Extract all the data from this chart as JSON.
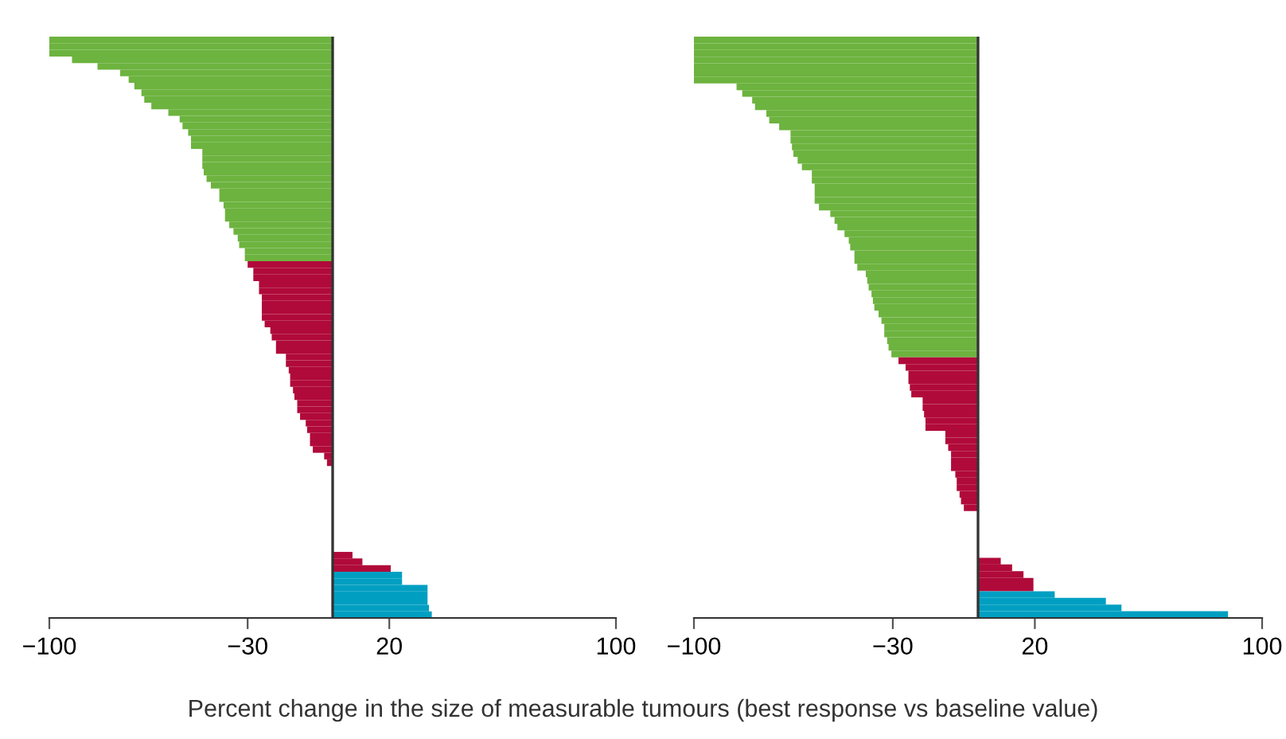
{
  "chart_data": [
    {
      "type": "bar",
      "orientation": "horizontal",
      "xlabel": "Percent change in the size of measurable tumours (best response vs baseline value)",
      "xlim": [
        -100,
        100
      ],
      "xticks": [
        -100,
        -30,
        20,
        100
      ],
      "tick_labels": "x",
      "grid": false,
      "legend": false,
      "ref_lines": [
        {
          "axis": "x",
          "value": 0,
          "color": "#333333"
        }
      ],
      "categories": [
        null,
        null,
        null,
        null,
        null,
        null,
        null,
        null,
        null,
        null,
        null,
        null,
        null,
        null,
        null,
        null,
        null,
        null,
        null,
        null,
        null,
        null,
        null,
        null,
        null,
        null,
        null,
        null,
        null,
        null,
        null,
        null,
        null,
        null,
        null,
        null,
        null,
        null,
        null,
        null,
        null,
        null,
        null,
        null,
        null,
        null,
        null,
        null,
        null,
        null,
        null,
        null,
        null,
        null,
        null,
        null,
        null,
        null,
        null,
        null,
        null,
        null,
        null,
        null,
        null,
        null,
        null,
        null,
        null,
        null,
        null,
        null,
        null,
        null,
        null,
        null,
        null,
        null,
        null,
        null,
        null,
        null,
        null,
        null,
        null,
        null,
        null,
        null
      ],
      "values": [
        -100,
        -100,
        -100,
        -92,
        -83,
        -75,
        -72,
        -70,
        -67.5,
        -66.5,
        -64,
        -58,
        -54,
        -53,
        -51,
        -50,
        -50,
        -46,
        -46,
        -46,
        -45.5,
        -44.5,
        -43,
        -40,
        -40,
        -38.5,
        -38,
        -38,
        -36.5,
        -35,
        -33.5,
        -33,
        -31,
        -31,
        -30,
        -28,
        -28,
        -26,
        -26,
        -25,
        -25,
        -25,
        -25,
        -24,
        -22,
        -21.5,
        -20,
        -20,
        -16.5,
        -16.5,
        -15.5,
        -15,
        -15,
        -14,
        -13.5,
        -12.5,
        -12.5,
        -11.5,
        -9.5,
        -9,
        -8,
        -8,
        -7,
        -3,
        -2,
        0,
        0,
        0,
        0,
        0,
        0,
        0,
        0,
        0,
        0,
        0,
        0,
        0,
        7,
        10.5,
        20.5,
        24.5,
        24.5,
        33.5,
        33.5,
        33.5,
        34,
        35
      ],
      "colors": [
        "#6db33f",
        "#6db33f",
        "#6db33f",
        "#6db33f",
        "#6db33f",
        "#6db33f",
        "#6db33f",
        "#6db33f",
        "#6db33f",
        "#6db33f",
        "#6db33f",
        "#6db33f",
        "#6db33f",
        "#6db33f",
        "#6db33f",
        "#6db33f",
        "#6db33f",
        "#6db33f",
        "#6db33f",
        "#6db33f",
        "#6db33f",
        "#6db33f",
        "#6db33f",
        "#6db33f",
        "#6db33f",
        "#6db33f",
        "#6db33f",
        "#6db33f",
        "#6db33f",
        "#6db33f",
        "#6db33f",
        "#6db33f",
        "#6db33f",
        "#6db33f",
        "#b00a3a",
        "#b00a3a",
        "#b00a3a",
        "#b00a3a",
        "#b00a3a",
        "#b00a3a",
        "#b00a3a",
        "#b00a3a",
        "#b00a3a",
        "#b00a3a",
        "#b00a3a",
        "#b00a3a",
        "#b00a3a",
        "#b00a3a",
        "#b00a3a",
        "#b00a3a",
        "#b00a3a",
        "#b00a3a",
        "#b00a3a",
        "#b00a3a",
        "#b00a3a",
        "#b00a3a",
        "#b00a3a",
        "#b00a3a",
        "#b00a3a",
        "#b00a3a",
        "#b00a3a",
        "#b00a3a",
        "#b00a3a",
        "#b00a3a",
        "#b00a3a",
        "#b00a3a",
        "#b00a3a",
        "#b00a3a",
        "#b00a3a",
        "#b00a3a",
        "#b00a3a",
        "#b00a3a",
        "#b00a3a",
        "#b00a3a",
        "#b00a3a",
        "#b00a3a",
        "#b00a3a",
        "#b00a3a",
        "#b00a3a",
        "#b00a3a",
        "#b00a3a",
        "#009fc2",
        "#009fc2",
        "#009fc2",
        "#009fc2",
        "#009fc2",
        "#009fc2",
        "#009fc2"
      ]
    },
    {
      "type": "bar",
      "orientation": "horizontal",
      "xlim": [
        -100,
        100
      ],
      "xticks": [
        -100,
        -30,
        20,
        100
      ],
      "tick_labels": "x",
      "grid": false,
      "legend": false,
      "ref_lines": [
        {
          "axis": "x",
          "value": 0,
          "color": "#333333"
        }
      ],
      "categories": [
        null,
        null,
        null,
        null,
        null,
        null,
        null,
        null,
        null,
        null,
        null,
        null,
        null,
        null,
        null,
        null,
        null,
        null,
        null,
        null,
        null,
        null,
        null,
        null,
        null,
        null,
        null,
        null,
        null,
        null,
        null,
        null,
        null,
        null,
        null,
        null,
        null,
        null,
        null,
        null,
        null,
        null,
        null,
        null,
        null,
        null,
        null,
        null,
        null,
        null,
        null,
        null,
        null,
        null,
        null,
        null,
        null,
        null,
        null,
        null,
        null,
        null,
        null,
        null,
        null,
        null,
        null,
        null,
        null,
        null,
        null,
        null,
        null,
        null,
        null,
        null,
        null,
        null,
        null,
        null,
        null,
        null,
        null,
        null,
        null,
        null,
        null
      ],
      "values": [
        -100,
        -100,
        -100,
        -100,
        -100,
        -100,
        -100,
        -85,
        -83,
        -79.5,
        -78.5,
        -74.5,
        -73.5,
        -70,
        -66,
        -66,
        -65.5,
        -65,
        -63.5,
        -62,
        -58.5,
        -58.5,
        -57.5,
        -57.5,
        -57.5,
        -56,
        -52,
        -50.5,
        -49.5,
        -47,
        -45.5,
        -45,
        -43.5,
        -43.5,
        -42.5,
        -39.5,
        -39,
        -38.5,
        -37.5,
        -37,
        -36.5,
        -35,
        -34,
        -33,
        -33,
        -32,
        -31.5,
        -30.5,
        -28,
        -25.5,
        -24.5,
        -24.5,
        -24,
        -23.5,
        -19.5,
        -19.5,
        -19,
        -18.5,
        -18.5,
        -11.5,
        -11.5,
        -10.5,
        -9.5,
        -9.5,
        -9.5,
        -8,
        -7.5,
        -7.5,
        -6.5,
        -6,
        -5,
        0,
        0,
        0,
        0,
        0,
        0,
        0,
        8,
        12,
        16,
        19.5,
        19.5,
        27,
        45,
        50.5,
        88
      ],
      "colors": [
        "#6db33f",
        "#6db33f",
        "#6db33f",
        "#6db33f",
        "#6db33f",
        "#6db33f",
        "#6db33f",
        "#6db33f",
        "#6db33f",
        "#6db33f",
        "#6db33f",
        "#6db33f",
        "#6db33f",
        "#6db33f",
        "#6db33f",
        "#6db33f",
        "#6db33f",
        "#6db33f",
        "#6db33f",
        "#6db33f",
        "#6db33f",
        "#6db33f",
        "#6db33f",
        "#6db33f",
        "#6db33f",
        "#6db33f",
        "#6db33f",
        "#6db33f",
        "#6db33f",
        "#6db33f",
        "#6db33f",
        "#6db33f",
        "#6db33f",
        "#6db33f",
        "#6db33f",
        "#6db33f",
        "#6db33f",
        "#6db33f",
        "#6db33f",
        "#6db33f",
        "#6db33f",
        "#6db33f",
        "#6db33f",
        "#6db33f",
        "#6db33f",
        "#6db33f",
        "#6db33f",
        "#6db33f",
        "#b00a3a",
        "#b00a3a",
        "#b00a3a",
        "#b00a3a",
        "#b00a3a",
        "#b00a3a",
        "#b00a3a",
        "#b00a3a",
        "#b00a3a",
        "#b00a3a",
        "#b00a3a",
        "#b00a3a",
        "#b00a3a",
        "#b00a3a",
        "#b00a3a",
        "#b00a3a",
        "#b00a3a",
        "#b00a3a",
        "#b00a3a",
        "#b00a3a",
        "#b00a3a",
        "#b00a3a",
        "#b00a3a",
        "#b00a3a",
        "#b00a3a",
        "#b00a3a",
        "#b00a3a",
        "#b00a3a",
        "#b00a3a",
        "#b00a3a",
        "#b00a3a",
        "#b00a3a",
        "#b00a3a",
        "#b00a3a",
        "#b00a3a",
        "#009fc2",
        "#009fc2",
        "#009fc2",
        "#009fc2"
      ]
    }
  ]
}
